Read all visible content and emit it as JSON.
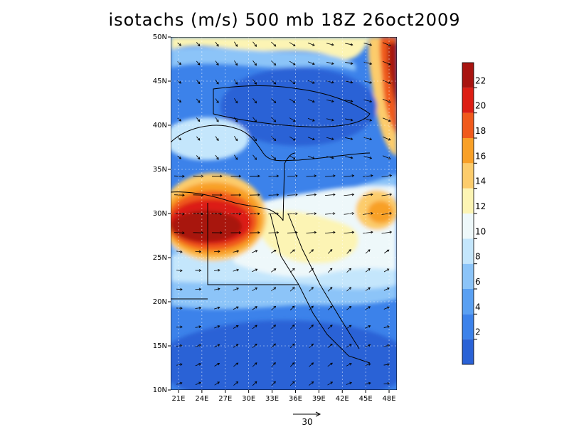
{
  "title": "isotachs (m/s) 500 mb 18Z 26oct2009",
  "map": {
    "lon_range": [
      20,
      49
    ],
    "lat_range": [
      10,
      50
    ],
    "lon_ticks": [
      "21E",
      "24E",
      "27E",
      "30E",
      "33E",
      "36E",
      "39E",
      "42E",
      "45E",
      "48E"
    ],
    "lat_ticks": [
      "10N",
      "15N",
      "20N",
      "25N",
      "30N",
      "35N",
      "40N",
      "45N",
      "50N"
    ]
  },
  "colorbar": {
    "levels": [
      2,
      4,
      6,
      8,
      10,
      12,
      14,
      16,
      18,
      20,
      22
    ],
    "labels": [
      "2",
      "4",
      "6",
      "8",
      "10",
      "12",
      "14",
      "16",
      "18",
      "20",
      "22"
    ],
    "colors": [
      "#2a62d6",
      "#3c82ea",
      "#5aa0f2",
      "#8cc4f8",
      "#c4e6fc",
      "#eef8fa",
      "#fcf4b4",
      "#fccc6c",
      "#f8a028",
      "#f05a1c",
      "#dc1e14",
      "#a81410"
    ]
  },
  "vector_reference": {
    "label": "30",
    "units": "m/s"
  }
}
